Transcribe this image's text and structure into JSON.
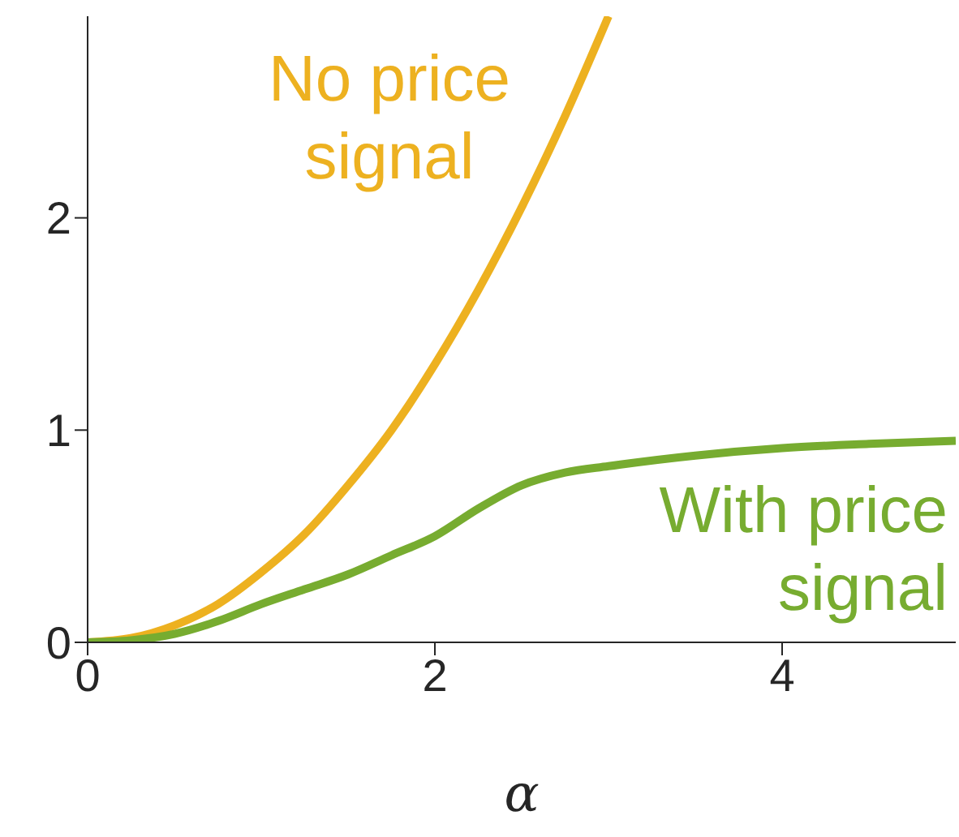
{
  "chart_data": {
    "type": "line",
    "xlabel": "α",
    "xlim": [
      0,
      5
    ],
    "xticks": [
      0,
      2,
      4
    ],
    "ylim": [
      0,
      2.95
    ],
    "yticks": [
      0,
      1,
      2
    ],
    "grid": false,
    "legend": false,
    "marker": "none",
    "line_style": "solid",
    "series": [
      {
        "name": "No price signal",
        "color": "#edb120",
        "x": [
          0,
          0.25,
          0.5,
          0.75,
          1,
          1.25,
          1.5,
          1.75,
          2,
          2.25,
          2.5,
          2.75,
          3
        ],
        "values": [
          0,
          0.02,
          0.08,
          0.18,
          0.33,
          0.51,
          0.74,
          1.0,
          1.31,
          1.66,
          2.05,
          2.48,
          2.95
        ]
      },
      {
        "name": "With price signal",
        "color": "#77ac30",
        "x": [
          0,
          0.25,
          0.5,
          0.75,
          1,
          1.25,
          1.5,
          1.75,
          2,
          2.25,
          2.5,
          2.75,
          3,
          3.5,
          4,
          4.5,
          5
        ],
        "values": [
          0,
          0.01,
          0.04,
          0.1,
          0.18,
          0.25,
          0.32,
          0.41,
          0.5,
          0.63,
          0.74,
          0.8,
          0.83,
          0.88,
          0.915,
          0.935,
          0.95
        ]
      }
    ]
  }
}
